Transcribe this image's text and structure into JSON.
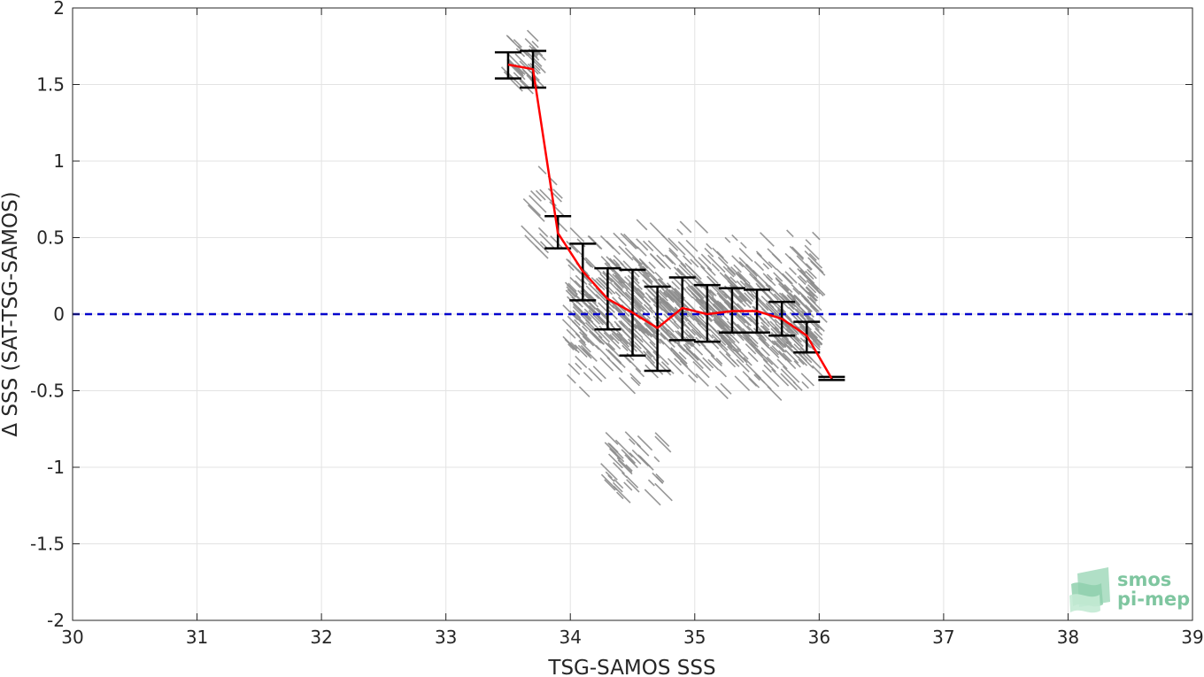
{
  "chart_data": {
    "type": "scatter",
    "xlabel": "TSG-SAMOS SSS",
    "ylabel": "Δ SSS (SAT-TSG-SAMOS)",
    "xlim": [
      30,
      39
    ],
    "ylim": [
      -2,
      2
    ],
    "x_ticks": [
      "30",
      "31",
      "32",
      "33",
      "34",
      "35",
      "36",
      "37",
      "38",
      "39"
    ],
    "y_ticks": [
      "2",
      "1.5",
      "1",
      "0.5",
      "0",
      "-0.5",
      "-1",
      "-1.5",
      "-2"
    ],
    "grid": true,
    "reference_line": {
      "y": 0,
      "style": "dashed",
      "color": "#0000cc"
    },
    "colors": {
      "scatter": "#8c8c8c",
      "mean_line": "#ff0000",
      "error_bars": "#000000",
      "reference": "#0000cc"
    },
    "scatter_clusters": [
      {
        "name": "upper",
        "x_range": [
          33.5,
          33.75
        ],
        "y_range": [
          1.45,
          1.82
        ]
      },
      {
        "name": "transition",
        "x_range": [
          33.65,
          34.0
        ],
        "y_range": [
          0.4,
          0.95
        ]
      },
      {
        "name": "main",
        "x_range": [
          34.0,
          36.0
        ],
        "y_range": [
          -0.75,
          0.68
        ]
      },
      {
        "name": "lower-outliers",
        "x_range": [
          34.3,
          34.75
        ],
        "y_range": [
          -1.22,
          -0.8
        ]
      }
    ],
    "series": [
      {
        "type": "line",
        "x": [
          33.5,
          33.7,
          33.9,
          34.1,
          34.3,
          34.5,
          34.7,
          34.9,
          35.1,
          35.3,
          35.5,
          35.7,
          35.9,
          36.1
        ],
        "y": [
          1.63,
          1.6,
          0.53,
          0.28,
          0.1,
          0.01,
          -0.09,
          0.04,
          0.0,
          0.02,
          0.02,
          -0.03,
          -0.14,
          -0.42
        ]
      },
      {
        "type": "errorbar",
        "x": [
          33.5,
          33.7,
          33.9,
          34.1,
          34.3,
          34.5,
          34.7,
          34.9,
          35.1,
          35.3,
          35.5,
          35.7,
          35.9,
          36.1
        ],
        "low": [
          1.54,
          1.48,
          0.43,
          0.09,
          -0.1,
          -0.27,
          -0.37,
          -0.17,
          -0.18,
          -0.12,
          -0.12,
          -0.14,
          -0.25,
          -0.43
        ],
        "high": [
          1.71,
          1.72,
          0.64,
          0.46,
          0.3,
          0.29,
          0.18,
          0.24,
          0.19,
          0.17,
          0.16,
          0.08,
          -0.05,
          -0.41
        ]
      }
    ]
  },
  "logo": {
    "line1": "smos",
    "line2": "pi-mep"
  }
}
